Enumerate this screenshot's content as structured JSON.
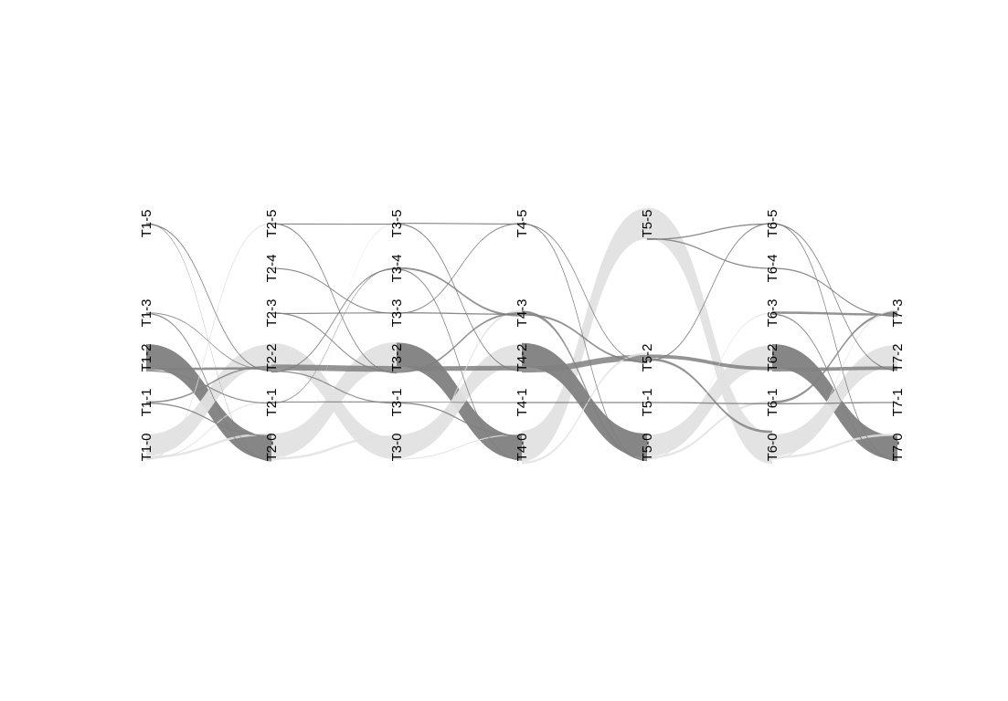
{
  "diagram": {
    "type": "alluvial",
    "colors": {
      "dark": "#808080",
      "light": "#e2e2e2",
      "background": "#ffffff",
      "label": "#000000"
    },
    "columns": [
      {
        "id": "T1",
        "nodes": [
          {
            "id": "T1-0",
            "label": "T1-0"
          },
          {
            "id": "T1-1",
            "label": "T1-1"
          },
          {
            "id": "T1-2",
            "label": "T1-2"
          },
          {
            "id": "T1-3",
            "label": "T1-3"
          },
          {
            "id": "T1-5",
            "label": "T1-5"
          }
        ]
      },
      {
        "id": "T2",
        "nodes": [
          {
            "id": "T2-0",
            "label": "T2-0"
          },
          {
            "id": "T2-1",
            "label": "T2-1"
          },
          {
            "id": "T2-2",
            "label": "T2-2"
          },
          {
            "id": "T2-3",
            "label": "T2-3"
          },
          {
            "id": "T2-4",
            "label": "T2-4"
          },
          {
            "id": "T2-5",
            "label": "T2-5"
          }
        ]
      },
      {
        "id": "T3",
        "nodes": [
          {
            "id": "T3-0",
            "label": "T3-0"
          },
          {
            "id": "T3-1",
            "label": "T3-1"
          },
          {
            "id": "T3-2",
            "label": "T3-2"
          },
          {
            "id": "T3-3",
            "label": "T3-3"
          },
          {
            "id": "T3-4",
            "label": "T3-4"
          },
          {
            "id": "T3-5",
            "label": "T3-5"
          }
        ]
      },
      {
        "id": "T4",
        "nodes": [
          {
            "id": "T4-0",
            "label": "T4-0"
          },
          {
            "id": "T4-1",
            "label": "T4-1"
          },
          {
            "id": "T4-2",
            "label": "T4-2"
          },
          {
            "id": "T4-3",
            "label": "T4-3"
          },
          {
            "id": "T4-5",
            "label": "T4-5"
          }
        ]
      },
      {
        "id": "T5",
        "nodes": [
          {
            "id": "T5-0",
            "label": "T5-0"
          },
          {
            "id": "T5-1",
            "label": "T5-1"
          },
          {
            "id": "T5-2",
            "label": "T5-2"
          },
          {
            "id": "T5-5",
            "label": "T5-5"
          }
        ]
      },
      {
        "id": "T6",
        "nodes": [
          {
            "id": "T6-0",
            "label": "T6-0"
          },
          {
            "id": "T6-1",
            "label": "T6-1"
          },
          {
            "id": "T6-2",
            "label": "T6-2"
          },
          {
            "id": "T6-3",
            "label": "T6-3"
          },
          {
            "id": "T6-4",
            "label": "T6-4"
          },
          {
            "id": "T6-5",
            "label": "T6-5"
          }
        ]
      },
      {
        "id": "T7",
        "nodes": [
          {
            "id": "T7-0",
            "label": "T7-0"
          },
          {
            "id": "T7-1",
            "label": "T7-1"
          },
          {
            "id": "T7-2",
            "label": "T7-2"
          },
          {
            "id": "T7-3",
            "label": "T7-3"
          }
        ]
      }
    ],
    "flows": [
      {
        "source": "T1-0",
        "target": "T2-2",
        "value": 9,
        "tone": "light"
      },
      {
        "source": "T1-0",
        "target": "T2-0",
        "value": 1,
        "tone": "light"
      },
      {
        "source": "T1-0",
        "target": "T2-1",
        "value": 0.5,
        "tone": "light"
      },
      {
        "source": "T1-0",
        "target": "T2-5",
        "value": 0.3,
        "tone": "light"
      },
      {
        "source": "T1-1",
        "target": "T2-2",
        "value": 0.6,
        "tone": "dark"
      },
      {
        "source": "T1-1",
        "target": "T2-0",
        "value": 0.3,
        "tone": "dark"
      },
      {
        "source": "T1-2",
        "target": "T2-0",
        "value": 10,
        "tone": "dark"
      },
      {
        "source": "T1-2",
        "target": "T2-2",
        "value": 1,
        "tone": "dark"
      },
      {
        "source": "T1-2",
        "target": "T2-1",
        "value": 0.5,
        "tone": "dark"
      },
      {
        "source": "T1-3",
        "target": "T2-2",
        "value": 0.4,
        "tone": "dark"
      },
      {
        "source": "T1-3",
        "target": "T2-0",
        "value": 0.3,
        "tone": "dark"
      },
      {
        "source": "T1-5",
        "target": "T2-0",
        "value": 0.4,
        "tone": "dark"
      },
      {
        "source": "T1-5",
        "target": "T2-2",
        "value": 0.3,
        "tone": "dark"
      },
      {
        "source": "T2-0",
        "target": "T3-2",
        "value": 10,
        "tone": "light"
      },
      {
        "source": "T2-0",
        "target": "T3-0",
        "value": 1,
        "tone": "light"
      },
      {
        "source": "T2-0",
        "target": "T3-5",
        "value": 0.4,
        "tone": "light"
      },
      {
        "source": "T2-1",
        "target": "T3-1",
        "value": 0.5,
        "tone": "dark"
      },
      {
        "source": "T2-1",
        "target": "T3-4",
        "value": 0.4,
        "tone": "dark"
      },
      {
        "source": "T2-2",
        "target": "T3-0",
        "value": 9,
        "tone": "light"
      },
      {
        "source": "T2-2",
        "target": "T3-2",
        "value": 2.5,
        "tone": "dark"
      },
      {
        "source": "T2-2",
        "target": "T3-1",
        "value": 0.5,
        "tone": "dark"
      },
      {
        "source": "T2-2",
        "target": "T3-4",
        "value": 0.3,
        "tone": "dark"
      },
      {
        "source": "T2-3",
        "target": "T3-2",
        "value": 0.3,
        "tone": "dark"
      },
      {
        "source": "T2-3",
        "target": "T3-3",
        "value": 0.2,
        "tone": "dark"
      },
      {
        "source": "T2-4",
        "target": "T3-3",
        "value": 0.2,
        "tone": "dark"
      },
      {
        "source": "T2-5",
        "target": "T3-2",
        "value": 0.3,
        "tone": "dark"
      },
      {
        "source": "T2-5",
        "target": "T3-5",
        "value": 0.2,
        "tone": "dark"
      },
      {
        "source": "T3-0",
        "target": "T4-2",
        "value": 9,
        "tone": "light"
      },
      {
        "source": "T3-0",
        "target": "T4-3",
        "value": 1,
        "tone": "light"
      },
      {
        "source": "T3-0",
        "target": "T4-0",
        "value": 0.5,
        "tone": "light"
      },
      {
        "source": "T3-1",
        "target": "T4-1",
        "value": 0.4,
        "tone": "dark"
      },
      {
        "source": "T3-1",
        "target": "T4-0",
        "value": 0.3,
        "tone": "dark"
      },
      {
        "source": "T3-2",
        "target": "T4-0",
        "value": 10,
        "tone": "dark"
      },
      {
        "source": "T3-2",
        "target": "T4-2",
        "value": 2,
        "tone": "dark"
      },
      {
        "source": "T3-2",
        "target": "T4-3",
        "value": 0.8,
        "tone": "dark"
      },
      {
        "source": "T3-3",
        "target": "T4-3",
        "value": 0.3,
        "tone": "dark"
      },
      {
        "source": "T3-3",
        "target": "T4-5",
        "value": 0.2,
        "tone": "dark"
      },
      {
        "source": "T3-4",
        "target": "T4-3",
        "value": 0.8,
        "tone": "dark"
      },
      {
        "source": "T3-4",
        "target": "T4-0",
        "value": 0.3,
        "tone": "dark"
      },
      {
        "source": "T3-5",
        "target": "T4-5",
        "value": 0.2,
        "tone": "dark"
      },
      {
        "source": "T3-5",
        "target": "T4-2",
        "value": 0.3,
        "tone": "dark"
      },
      {
        "source": "T4-0",
        "target": "T5-5",
        "value": 13,
        "tone": "light"
      },
      {
        "source": "T4-0",
        "target": "T5-2",
        "value": 1,
        "tone": "light"
      },
      {
        "source": "T4-1",
        "target": "T5-1",
        "value": 0.3,
        "tone": "dark"
      },
      {
        "source": "T4-2",
        "target": "T5-0",
        "value": 10,
        "tone": "dark"
      },
      {
        "source": "T4-2",
        "target": "T5-2",
        "value": 2.5,
        "tone": "dark"
      },
      {
        "source": "T4-3",
        "target": "T5-0",
        "value": 1.2,
        "tone": "dark"
      },
      {
        "source": "T4-3",
        "target": "T5-2",
        "value": 0.8,
        "tone": "dark"
      },
      {
        "source": "T4-5",
        "target": "T5-0",
        "value": 0.3,
        "tone": "dark"
      },
      {
        "source": "T4-5",
        "target": "T5-2",
        "value": 0.2,
        "tone": "dark"
      },
      {
        "source": "T5-0",
        "target": "T6-2",
        "value": 9,
        "tone": "light"
      },
      {
        "source": "T5-0",
        "target": "T6-1",
        "value": 1,
        "tone": "light"
      },
      {
        "source": "T5-0",
        "target": "T6-3",
        "value": 0.5,
        "tone": "light"
      },
      {
        "source": "T5-1",
        "target": "T6-1",
        "value": 0.3,
        "tone": "dark"
      },
      {
        "source": "T5-2",
        "target": "T6-2",
        "value": 1.5,
        "tone": "dark"
      },
      {
        "source": "T5-2",
        "target": "T6-0",
        "value": 1,
        "tone": "dark"
      },
      {
        "source": "T5-2",
        "target": "T6-5",
        "value": 0.3,
        "tone": "dark"
      },
      {
        "source": "T5-5",
        "target": "T6-0",
        "value": 13,
        "tone": "light"
      },
      {
        "source": "T5-5",
        "target": "T6-4",
        "value": 0.3,
        "tone": "dark"
      },
      {
        "source": "T5-5",
        "target": "T6-5",
        "value": 0.3,
        "tone": "dark"
      },
      {
        "source": "T6-0",
        "target": "T7-2",
        "value": 9,
        "tone": "light"
      },
      {
        "source": "T6-0",
        "target": "T7-0",
        "value": 1,
        "tone": "light"
      },
      {
        "source": "T6-0",
        "target": "T7-3",
        "value": 0.6,
        "tone": "light"
      },
      {
        "source": "T6-1",
        "target": "T7-3",
        "value": 1,
        "tone": "dark"
      },
      {
        "source": "T6-1",
        "target": "T7-1",
        "value": 0.3,
        "tone": "dark"
      },
      {
        "source": "T6-2",
        "target": "T7-0",
        "value": 10,
        "tone": "dark"
      },
      {
        "source": "T6-2",
        "target": "T7-2",
        "value": 1.5,
        "tone": "dark"
      },
      {
        "source": "T6-3",
        "target": "T7-3",
        "value": 1,
        "tone": "dark"
      },
      {
        "source": "T6-3",
        "target": "T7-0",
        "value": 0.3,
        "tone": "dark"
      },
      {
        "source": "T6-4",
        "target": "T7-3",
        "value": 0.3,
        "tone": "dark"
      },
      {
        "source": "T6-5",
        "target": "T7-0",
        "value": 0.3,
        "tone": "dark"
      },
      {
        "source": "T6-5",
        "target": "T7-2",
        "value": 0.3,
        "tone": "dark"
      }
    ]
  }
}
